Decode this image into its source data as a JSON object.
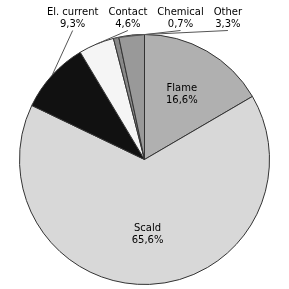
{
  "chart_data": {
    "type": "pie",
    "categories": [
      "Flame",
      "Scald",
      "El. current",
      "Contact",
      "Chemical",
      "Other"
    ],
    "values": [
      16.6,
      65.6,
      9.3,
      4.6,
      0.7,
      3.3
    ],
    "value_labels": [
      "16,6%",
      "65,6%",
      "9,3%",
      "4,6%",
      "0,7%",
      "3,3%"
    ],
    "colors": [
      "#b0b0b0",
      "#d8d8d8",
      "#111111",
      "#f5f5f5",
      "#888888",
      "#999999"
    ],
    "data_labels": true
  }
}
